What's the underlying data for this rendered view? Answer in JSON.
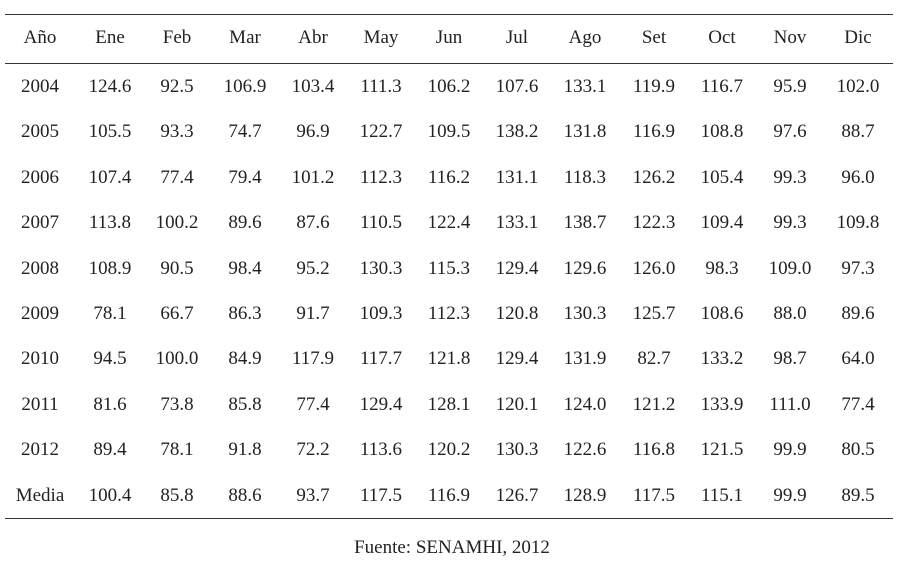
{
  "table": {
    "header": [
      "Año",
      "Ene",
      "Feb",
      "Mar",
      "Abr",
      "May",
      "Jun",
      "Jul",
      "Ago",
      "Set",
      "Oct",
      "Nov",
      "Dic"
    ],
    "rows": [
      [
        "2004",
        "124.6",
        "92.5",
        "106.9",
        "103.4",
        "111.3",
        "106.2",
        "107.6",
        "133.1",
        "119.9",
        "116.7",
        "95.9",
        "102.0"
      ],
      [
        "2005",
        "105.5",
        "93.3",
        "74.7",
        "96.9",
        "122.7",
        "109.5",
        "138.2",
        "131.8",
        "116.9",
        "108.8",
        "97.6",
        "88.7"
      ],
      [
        "2006",
        "107.4",
        "77.4",
        "79.4",
        "101.2",
        "112.3",
        "116.2",
        "131.1",
        "118.3",
        "126.2",
        "105.4",
        "99.3",
        "96.0"
      ],
      [
        "2007",
        "113.8",
        "100.2",
        "89.6",
        "87.6",
        "110.5",
        "122.4",
        "133.1",
        "138.7",
        "122.3",
        "109.4",
        "99.3",
        "109.8"
      ],
      [
        "2008",
        "108.9",
        "90.5",
        "98.4",
        "95.2",
        "130.3",
        "115.3",
        "129.4",
        "129.6",
        "126.0",
        "98.3",
        "109.0",
        "97.3"
      ],
      [
        "2009",
        "78.1",
        "66.7",
        "86.3",
        "91.7",
        "109.3",
        "112.3",
        "120.8",
        "130.3",
        "125.7",
        "108.6",
        "88.0",
        "89.6"
      ],
      [
        "2010",
        "94.5",
        "100.0",
        "84.9",
        "117.9",
        "117.7",
        "121.8",
        "129.4",
        "131.9",
        "82.7",
        "133.2",
        "98.7",
        "64.0"
      ],
      [
        "2011",
        "81.6",
        "73.8",
        "85.8",
        "77.4",
        "129.4",
        "128.1",
        "120.1",
        "124.0",
        "121.2",
        "133.9",
        "111.0",
        "77.4"
      ],
      [
        "2012",
        "89.4",
        "78.1",
        "91.8",
        "72.2",
        "113.6",
        "120.2",
        "130.3",
        "122.6",
        "116.8",
        "121.5",
        "99.9",
        "80.5"
      ],
      [
        "Media",
        "100.4",
        "85.8",
        "88.6",
        "93.7",
        "117.5",
        "116.9",
        "126.7",
        "128.9",
        "117.5",
        "115.1",
        "99.9",
        "89.5"
      ]
    ]
  },
  "footer": "Fuente: SENAMHI, 2012"
}
